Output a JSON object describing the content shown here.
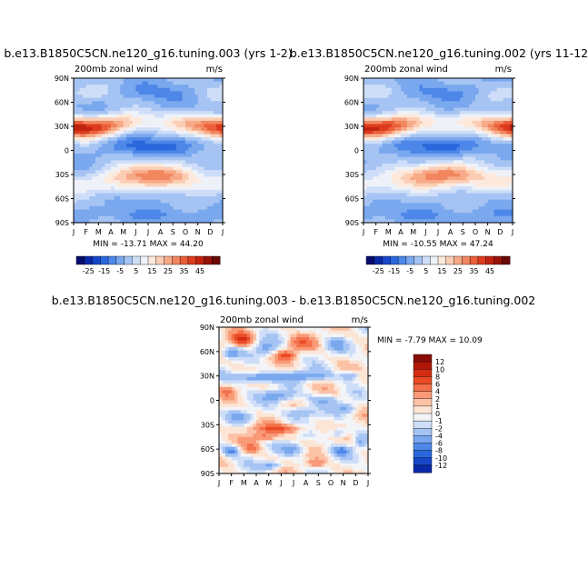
{
  "chart_data": [
    {
      "type": "heatmap",
      "title": "b.e13.B1850C5CN.ne120_g16.tuning.003 (yrs 1-2)",
      "left_label": "200mb zonal wind",
      "right_label": "m/s",
      "x_ticks": [
        "J",
        "F",
        "M",
        "A",
        "M",
        "J",
        "J",
        "A",
        "S",
        "O",
        "N",
        "D",
        "J"
      ],
      "y_ticks": [
        "90N",
        "60N",
        "30N",
        "0",
        "30S",
        "60S",
        "90S"
      ],
      "stats": "MIN = -13.71  MAX =  44.20",
      "min": -13.71,
      "max": 44.2
    },
    {
      "type": "heatmap",
      "title": "b.e13.B1850C5CN.ne120_g16.tuning.002 (yrs 11-12",
      "left_label": "200mb zonal wind",
      "right_label": "m/s",
      "x_ticks": [
        "J",
        "F",
        "M",
        "A",
        "M",
        "J",
        "J",
        "A",
        "S",
        "O",
        "N",
        "D",
        "J"
      ],
      "y_ticks": [
        "90N",
        "60N",
        "30N",
        "0",
        "30S",
        "60S",
        "90S"
      ],
      "stats": "MIN = -10.55  MAX =  47.24",
      "min": -10.55,
      "max": 47.24
    },
    {
      "type": "heatmap",
      "title": "b.e13.B1850C5CN.ne120_g16.tuning.003 - b.e13.B1850C5CN.ne120_g16.tuning.002",
      "left_label": "200mb zonal wind",
      "right_label": "m/s",
      "x_ticks": [
        "J",
        "F",
        "M",
        "A",
        "M",
        "J",
        "J",
        "A",
        "S",
        "O",
        "N",
        "D",
        "J"
      ],
      "y_ticks": [
        "90N",
        "60N",
        "30N",
        "0",
        "30S",
        "60S",
        "90S"
      ],
      "stats": "MIN =  -7.79  MAX =  10.09",
      "min": -7.79,
      "max": 10.09
    }
  ],
  "top_colorbar": {
    "labels": [
      "-25",
      "-15",
      "-5",
      "5",
      "15",
      "25",
      "35",
      "45"
    ],
    "colors": [
      "#050c6e",
      "#0a29a8",
      "#1746c8",
      "#2a67dd",
      "#4d87e8",
      "#7aa8ef",
      "#a6c4f3",
      "#cfdef8",
      "#eef2f8",
      "#fde9dc",
      "#fbcdb3",
      "#f7aa88",
      "#f2865f",
      "#ea5f3a",
      "#dc3b1e",
      "#c0220f",
      "#981208",
      "#6a0804"
    ]
  },
  "diff_colorbar": {
    "labels": [
      "12",
      "10",
      "8",
      "6",
      "4",
      "2",
      "1",
      "0",
      "-1",
      "-2",
      "-4",
      "-6",
      "-8",
      "-10",
      "-12"
    ],
    "colors": [
      "#8a0c06",
      "#b0170a",
      "#d42c14",
      "#ea4a25",
      "#f4714a",
      "#f89a78",
      "#fbc2a6",
      "#fde5d6",
      "#f2f4f8",
      "#cfdef8",
      "#a6c4f3",
      "#7aa8ef",
      "#4d87e8",
      "#2a67dd",
      "#1746c8",
      "#0a29a8"
    ]
  }
}
